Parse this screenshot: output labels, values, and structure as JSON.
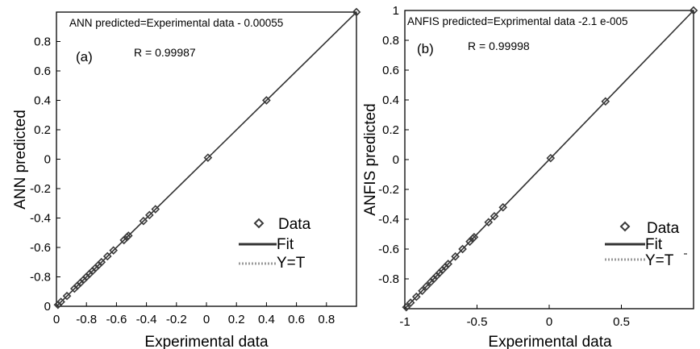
{
  "chart_data": [
    {
      "type": "scatter",
      "panel_label": "(a)",
      "equation": "ANN predicted=Experimental data - 0.00055",
      "r_label": "R = 0.99987",
      "xlabel": "Experimental data",
      "ylabel": "ANN predicted",
      "xlim": [
        -1,
        1
      ],
      "ylim": [
        -1,
        1
      ],
      "xticks": [
        -0.8,
        -0.6,
        -0.4,
        -0.2,
        0,
        0.2,
        0.4,
        0.6,
        0.8
      ],
      "xtick_labels": [
        "-0.8",
        "-0.6",
        "-0.4",
        "-0.2",
        "0",
        "0.2",
        "0.4",
        "0.6",
        "0.8"
      ],
      "yticks": [
        -0.8,
        -0.6,
        -0.4,
        -0.2,
        0,
        0.2,
        0.4,
        0.6,
        0.8
      ],
      "ytick_labels": [
        "-0.8",
        "-0.6",
        "-0.4",
        "-0.2",
        "0",
        "0.2",
        "0.4",
        "0.6",
        "0.8"
      ],
      "corner_labels": {
        "x_left": "0",
        "y_bottom": "0"
      },
      "fit_offset": -0.00055,
      "legend": {
        "placement": "lower-right",
        "items": [
          "Data",
          "Fit",
          "Y=T"
        ]
      },
      "series": [
        {
          "name": "Data",
          "x": [
            -0.99,
            -0.97,
            -0.93,
            -0.88,
            -0.86,
            -0.84,
            -0.82,
            -0.8,
            -0.78,
            -0.76,
            -0.74,
            -0.72,
            -0.7,
            -0.66,
            -0.62,
            -0.55,
            -0.53,
            -0.52,
            -0.42,
            -0.38,
            -0.34,
            0.01,
            0.4,
            1.0
          ],
          "y": [
            -0.99,
            -0.97,
            -0.93,
            -0.88,
            -0.86,
            -0.84,
            -0.82,
            -0.8,
            -0.78,
            -0.76,
            -0.74,
            -0.72,
            -0.7,
            -0.66,
            -0.62,
            -0.55,
            -0.53,
            -0.52,
            -0.42,
            -0.38,
            -0.34,
            0.01,
            0.4,
            1.0
          ]
        },
        {
          "name": "Fit",
          "x": [
            -1,
            1
          ],
          "y": [
            -1.00055,
            0.99945
          ]
        },
        {
          "name": "Y=T",
          "x": [
            -1,
            1
          ],
          "y": [
            -1,
            1
          ]
        }
      ]
    },
    {
      "type": "scatter",
      "panel_label": "(b)",
      "equation": "ANFIS predicted=Exprimental data -2.1 e-005",
      "r_label": "R = 0.99998",
      "xlabel": "Experimental data",
      "ylabel": "ANFIS predicted",
      "xlim": [
        -1,
        1
      ],
      "ylim": [
        -1,
        1
      ],
      "xticks": [
        -1,
        -0.5,
        0,
        0.5
      ],
      "xtick_labels": [
        "-1",
        "-0.5",
        "0",
        "0.5"
      ],
      "yticks": [
        -0.8,
        -0.6,
        -0.4,
        -0.2,
        0,
        0.2,
        0.4,
        0.6,
        0.8,
        1
      ],
      "ytick_labels": [
        "-0.8",
        "-0.6",
        "-0.4",
        "-0.2",
        "0",
        "0.2",
        "0.4",
        "0.6",
        "0.8",
        "1"
      ],
      "fit_offset": -2.1e-05,
      "legend": {
        "placement": "lower-right",
        "items": [
          "Data",
          "Fit",
          "Y=T"
        ]
      },
      "series": [
        {
          "name": "Data",
          "x": [
            -0.99,
            -0.96,
            -0.92,
            -0.88,
            -0.85,
            -0.82,
            -0.8,
            -0.78,
            -0.76,
            -0.74,
            -0.72,
            -0.7,
            -0.65,
            -0.6,
            -0.55,
            -0.53,
            -0.52,
            -0.42,
            -0.38,
            -0.32,
            0.01,
            0.39,
            1.0
          ],
          "y": [
            -0.99,
            -0.96,
            -0.92,
            -0.88,
            -0.85,
            -0.82,
            -0.8,
            -0.78,
            -0.76,
            -0.74,
            -0.72,
            -0.7,
            -0.65,
            -0.6,
            -0.55,
            -0.53,
            -0.52,
            -0.42,
            -0.38,
            -0.32,
            0.01,
            0.39,
            1.0
          ]
        },
        {
          "name": "Fit",
          "x": [
            -1,
            1
          ],
          "y": [
            -1.000021,
            0.999979
          ]
        },
        {
          "name": "Y=T",
          "x": [
            -1,
            1
          ],
          "y": [
            -1,
            1
          ]
        }
      ]
    }
  ],
  "colors": {
    "axes": "#000000",
    "fit": "#333333",
    "yt": "#9a9a9a",
    "marker": "#3a3a3a"
  }
}
